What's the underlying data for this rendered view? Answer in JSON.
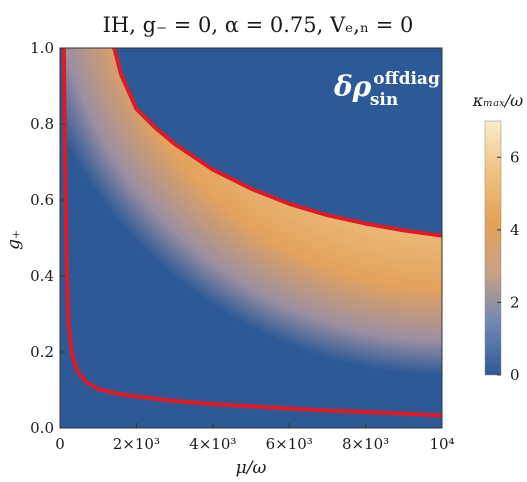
{
  "chart_data": {
    "type": "heatmap",
    "title": "IH, g₋ = 0, α = 0.75, Vₑ,ₙ = 0",
    "panel_label": {
      "main": "δρ",
      "sup": "offdiag",
      "sub": "sin"
    },
    "xlabel": "μ/ω",
    "ylabel": "g₊",
    "xlim": [
      0,
      10000
    ],
    "ylim": [
      0,
      1.0
    ],
    "x_ticks": [
      {
        "value": 0,
        "label": "0"
      },
      {
        "value": 2000,
        "label": "2×10³"
      },
      {
        "value": 4000,
        "label": "4×10³"
      },
      {
        "value": 6000,
        "label": "6×10³"
      },
      {
        "value": 8000,
        "label": "8×10³"
      },
      {
        "value": 10000,
        "label": "10⁴"
      }
    ],
    "y_ticks": [
      {
        "value": 0.0,
        "label": "0.0"
      },
      {
        "value": 0.2,
        "label": "0.2"
      },
      {
        "value": 0.4,
        "label": "0.4"
      },
      {
        "value": 0.6,
        "label": "0.6"
      },
      {
        "value": 0.8,
        "label": "0.8"
      },
      {
        "value": 1.0,
        "label": "1.0"
      }
    ],
    "colorbar": {
      "label": "κₘₐₓ/ω",
      "range": [
        0,
        7
      ],
      "ticks": [
        {
          "value": 0,
          "label": "0"
        },
        {
          "value": 2,
          "label": "2"
        },
        {
          "value": 4,
          "label": "4"
        },
        {
          "value": 6,
          "label": "6"
        }
      ],
      "colors": [
        "#2d5a97",
        "#6f86b3",
        "#c6a286",
        "#e3a257",
        "#f0c27f",
        "#fbeccb"
      ]
    },
    "background_color": "#2d5a97",
    "boundary_color": "#e01a24",
    "contours": [
      {
        "name": "upper",
        "points": [
          [
            1420,
            1.0
          ],
          [
            1600,
            0.93
          ],
          [
            2000,
            0.84
          ],
          [
            2500,
            0.79
          ],
          [
            3000,
            0.748
          ],
          [
            4000,
            0.68
          ],
          [
            5000,
            0.63
          ],
          [
            6000,
            0.59
          ],
          [
            7000,
            0.56
          ],
          [
            8000,
            0.538
          ],
          [
            9000,
            0.52
          ],
          [
            10000,
            0.506
          ]
        ]
      },
      {
        "name": "lower",
        "points": [
          [
            100,
            1.0
          ],
          [
            120,
            0.8
          ],
          [
            150,
            0.6
          ],
          [
            180,
            0.4
          ],
          [
            220,
            0.28
          ],
          [
            300,
            0.2
          ],
          [
            450,
            0.15
          ],
          [
            700,
            0.12
          ],
          [
            1000,
            0.103
          ],
          [
            1500,
            0.09
          ],
          [
            2000,
            0.083
          ],
          [
            3000,
            0.071
          ],
          [
            4000,
            0.063
          ],
          [
            5000,
            0.057
          ],
          [
            6000,
            0.051
          ],
          [
            7000,
            0.046
          ],
          [
            8000,
            0.042
          ],
          [
            9000,
            0.038
          ],
          [
            10000,
            0.033
          ]
        ]
      }
    ]
  }
}
